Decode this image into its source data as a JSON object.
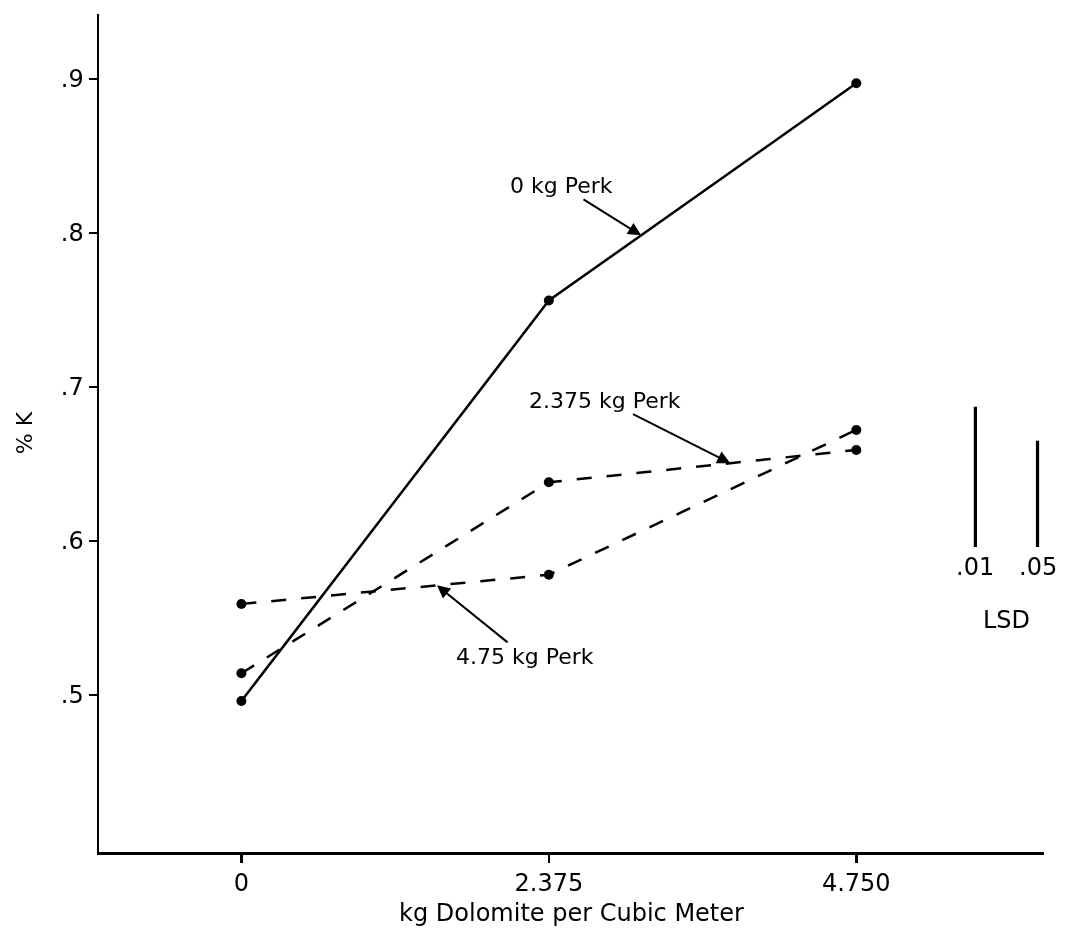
{
  "chart_data": {
    "type": "line",
    "xlabel": "kg Dolomite per Cubic Meter",
    "ylabel": "% K",
    "x": [
      0,
      2.375,
      4.75
    ],
    "series": [
      {
        "name": "0 kg Perk",
        "color": "#000000",
        "line_style": "solid",
        "marker": "circle",
        "values": [
          0.496,
          0.756,
          0.897
        ]
      },
      {
        "name": "2.375 kg Perk",
        "color": "#000000",
        "line_style": "dashed",
        "marker": "circle",
        "values": [
          0.514,
          0.638,
          0.659
        ]
      },
      {
        "name": "4.75 kg Perk",
        "color": "#000000",
        "line_style": "dashed",
        "marker": "circle",
        "values": [
          0.559,
          0.578,
          0.672
        ]
      },
      {
        "type": "bar",
        "color": "#000000",
        "x": [
          5.67,
          6.15
        ],
        "base": [
          0.596,
          0.596
        ],
        "values": [
          0.091,
          0.069
        ]
      }
    ],
    "annotations": [
      {
        "text": ".01",
        "x": 5.67,
        "y": 0.596
      },
      {
        "text": ".05",
        "x": 6.15,
        "y": 0.596
      },
      "LSD"
    ],
    "xlim": [
      -1.1,
      6.2
    ],
    "ylim": [
      0.398,
      0.942
    ],
    "xticks": [
      0,
      2.375,
      {
        "value": 4.75,
        "label": "4.750"
      }
    ],
    "yticks": [
      {
        "value": 0.5,
        "label": ".5"
      },
      {
        "value": 0.6,
        "label": ".6"
      },
      {
        "value": 0.7,
        "label": ".7"
      },
      {
        "value": 0.8,
        "label": ".8"
      },
      {
        "value": 0.9,
        "label": ".9"
      }
    ],
    "grid": false
  }
}
